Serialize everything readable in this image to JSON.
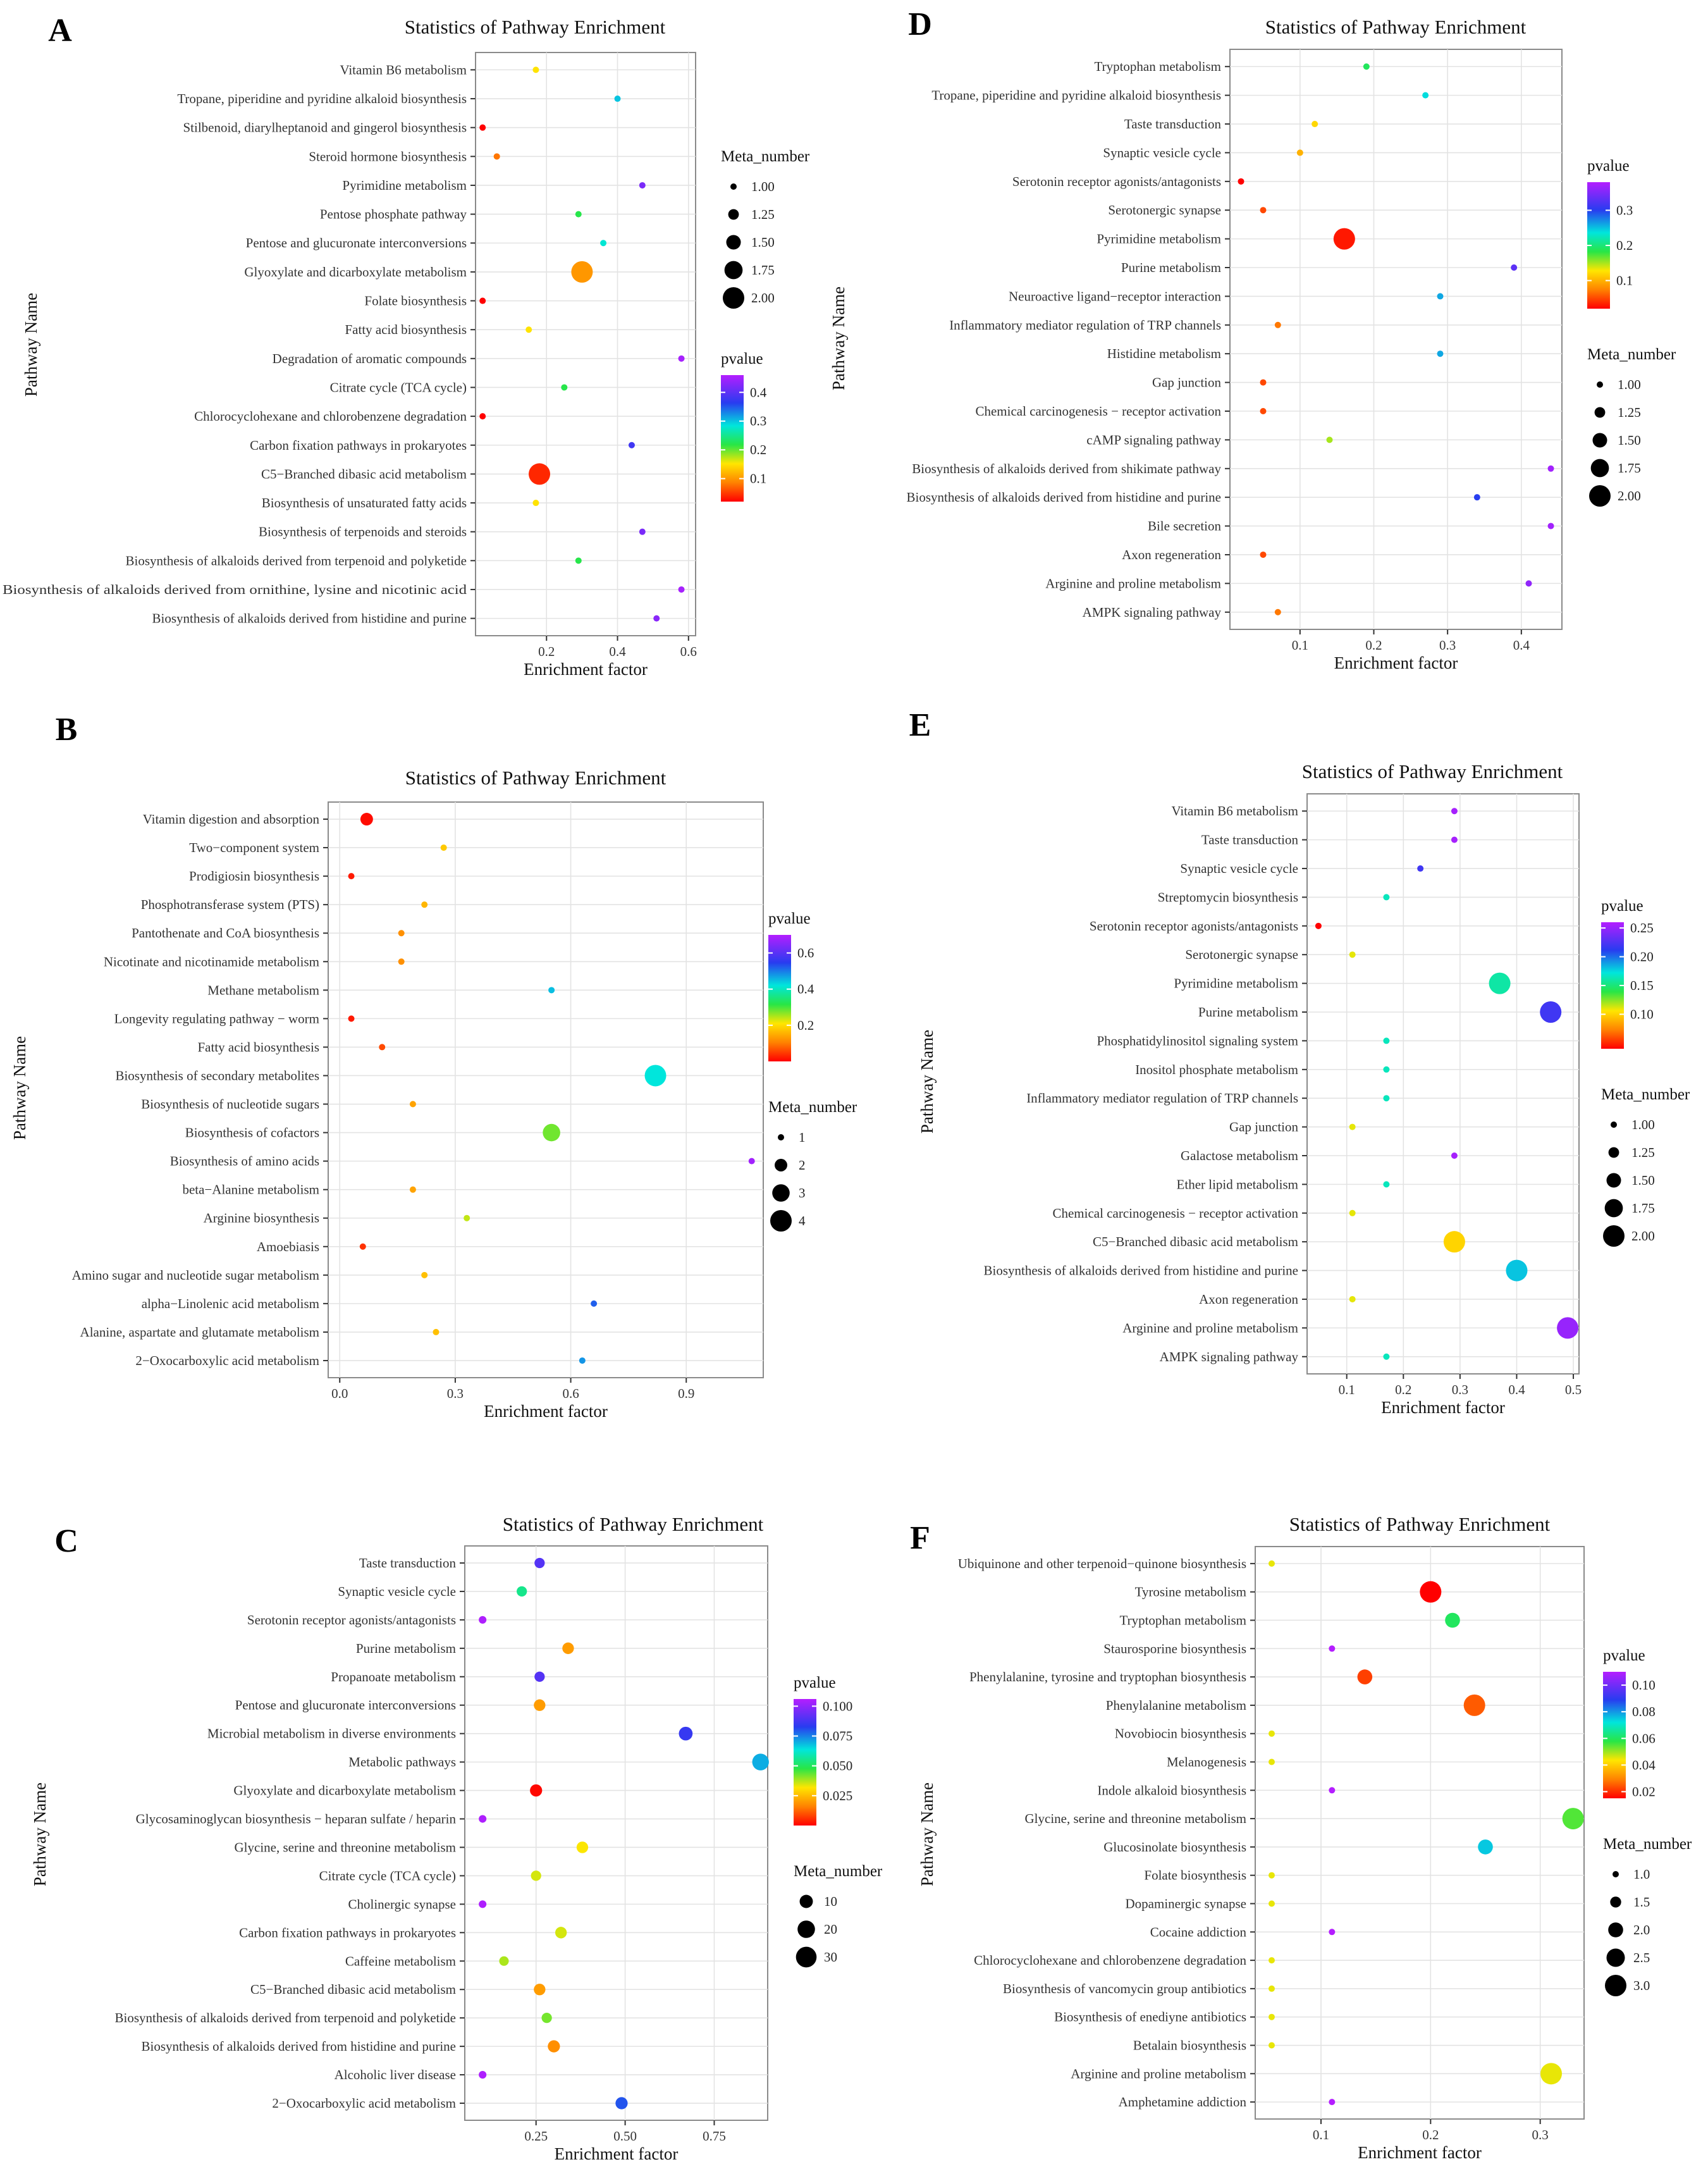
{
  "figure": {
    "panels": [
      "A",
      "B",
      "C",
      "D",
      "E",
      "F"
    ]
  },
  "chart_data": [
    {
      "panel": "A",
      "type": "scatter",
      "title": "Statistics of Pathway Enrichment",
      "xlabel": "Enrichment factor",
      "ylabel": "Pathway Name",
      "xlim": [
        0.0,
        0.62
      ],
      "xticks": [
        0.2,
        0.4,
        0.6
      ],
      "xtick_labels": [
        "0.2",
        "0.4",
        "0.6"
      ],
      "categories": [
        "Vitamin B6 metabolism",
        "Tropane, piperidine and pyridine alkaloid biosynthesis",
        "Stilbenoid, diarylheptanoid and gingerol biosynthesis",
        "Steroid hormone biosynthesis",
        "Pyrimidine metabolism",
        "Pentose phosphate pathway",
        "Pentose and glucuronate interconversions",
        "Glyoxylate and dicarboxylate metabolism",
        "Folate biosynthesis",
        "Fatty acid biosynthesis",
        "Degradation of aromatic compounds",
        "Citrate cycle (TCA cycle)",
        "Chlorocyclohexane and chlorobenzene degradation",
        "Carbon fixation pathways in prokaryotes",
        "C5−Branched dibasic acid metabolism",
        "Biosynthesis of unsaturated fatty acids",
        "Biosynthesis of terpenoids and steroids",
        "Biosynthesis of alkaloids derived from terpenoid and polyketide",
        "Biosynthesis of alkaloids derived from ornithine, lysine and nicotinic acid",
        "Biosynthesis of alkaloids derived from histidine and purine"
      ],
      "x": [
        0.17,
        0.4,
        0.02,
        0.06,
        0.47,
        0.29,
        0.36,
        0.3,
        0.02,
        0.15,
        0.58,
        0.25,
        0.02,
        0.44,
        0.18,
        0.17,
        0.47,
        0.29,
        0.58,
        0.51
      ],
      "pvalue": [
        0.15,
        0.3,
        0.02,
        0.08,
        0.42,
        0.22,
        0.28,
        0.1,
        0.02,
        0.15,
        0.45,
        0.22,
        0.02,
        0.38,
        0.04,
        0.15,
        0.42,
        0.22,
        0.45,
        0.43
      ],
      "size": [
        1,
        1,
        1,
        1,
        1,
        1,
        1,
        2,
        1,
        1,
        1,
        1,
        1,
        1,
        2,
        1,
        1,
        1,
        1,
        1
      ],
      "color_legend": {
        "title": "pvalue",
        "min": 0.02,
        "max": 0.46,
        "ticks": [
          0.1,
          0.2,
          0.3,
          0.4
        ],
        "labels": [
          "0.1",
          "0.2",
          "0.3",
          "0.4"
        ]
      },
      "size_legend": {
        "title": "Meta_number",
        "values": [
          1.0,
          1.25,
          1.5,
          1.75,
          2.0
        ],
        "labels": [
          "1.00",
          "1.25",
          "1.50",
          "1.75",
          "2.00"
        ],
        "range": [
          1,
          2
        ]
      },
      "legend_order": [
        "size",
        "color"
      ]
    },
    {
      "panel": "B",
      "type": "scatter",
      "title": "Statistics of Pathway Enrichment",
      "xlabel": "Enrichment factor",
      "ylabel": "Pathway Name",
      "xlim": [
        -0.03,
        1.1
      ],
      "xticks": [
        0.0,
        0.3,
        0.6,
        0.9
      ],
      "xtick_labels": [
        "0.0",
        "0.3",
        "0.6",
        "0.9"
      ],
      "categories": [
        "Vitamin digestion and absorption",
        "Two−component system",
        "Prodigiosin biosynthesis",
        "Phosphotransferase system (PTS)",
        "Pantothenate and CoA biosynthesis",
        "Nicotinate and nicotinamide metabolism",
        "Methane metabolism",
        "Longevity regulating pathway − worm",
        "Fatty acid biosynthesis",
        "Biosynthesis of secondary metabolites",
        "Biosynthesis of nucleotide sugars",
        "Biosynthesis of cofactors",
        "Biosynthesis of amino acids",
        "beta−Alanine metabolism",
        "Arginine biosynthesis",
        "Amoebiasis",
        "Amino sugar and nucleotide sugar metabolism",
        "alpha−Linolenic acid metabolism",
        "Alanine, aspartate and glutamate metabolism",
        "2−Oxocarboxylic acid metabolism"
      ],
      "x": [
        0.07,
        0.27,
        0.03,
        0.22,
        0.16,
        0.16,
        0.55,
        0.03,
        0.11,
        0.82,
        0.19,
        0.55,
        1.07,
        0.19,
        0.33,
        0.06,
        0.22,
        0.66,
        0.25,
        0.63
      ],
      "pvalue": [
        0.01,
        0.18,
        0.02,
        0.16,
        0.12,
        0.12,
        0.45,
        0.02,
        0.06,
        0.42,
        0.14,
        0.28,
        0.68,
        0.14,
        0.24,
        0.04,
        0.17,
        0.52,
        0.17,
        0.48
      ],
      "size": [
        2,
        1,
        1,
        1,
        1,
        1,
        1,
        1,
        1,
        4,
        1,
        3,
        1,
        1,
        1,
        1,
        1,
        1,
        1,
        1
      ],
      "color_legend": {
        "title": "pvalue",
        "min": 0.0,
        "max": 0.7,
        "ticks": [
          0.2,
          0.4,
          0.6
        ],
        "labels": [
          "0.2",
          "0.4",
          "0.6"
        ]
      },
      "size_legend": {
        "title": "Meta_number",
        "values": [
          1,
          2,
          3,
          4
        ],
        "labels": [
          "1",
          "2",
          "3",
          "4"
        ],
        "range": [
          1,
          4
        ]
      },
      "legend_order": [
        "color",
        "size"
      ]
    },
    {
      "panel": "C",
      "type": "scatter",
      "title": "Statistics of Pathway Enrichment",
      "xlabel": "Enrichment factor",
      "ylabel": "Pathway Name",
      "xlim": [
        0.05,
        0.9
      ],
      "xticks": [
        0.25,
        0.5,
        0.75
      ],
      "xtick_labels": [
        "0.25",
        "0.50",
        "0.75"
      ],
      "categories": [
        "Taste transduction",
        "Synaptic vesicle cycle",
        "Serotonin receptor agonists/antagonists",
        "Purine metabolism",
        "Propanoate metabolism",
        "Pentose and glucuronate interconversions",
        "Microbial metabolism in diverse environments",
        "Metabolic pathways",
        "Glyoxylate and dicarboxylate metabolism",
        "Glycosaminoglycan biosynthesis − heparan sulfate / heparin",
        "Glycine, serine and threonine metabolism",
        "Citrate cycle (TCA cycle)",
        "Cholinergic synapse",
        "Carbon fixation pathways in prokaryotes",
        "Caffeine metabolism",
        "C5−Branched dibasic acid metabolism",
        "Biosynthesis of alkaloids derived from terpenoid and polyketide",
        "Biosynthesis of alkaloids derived from histidine and purine",
        "Alcoholic liver disease",
        "2−Oxocarboxylic acid metabolism"
      ],
      "x": [
        0.26,
        0.21,
        0.1,
        0.34,
        0.26,
        0.26,
        0.67,
        0.88,
        0.25,
        0.1,
        0.38,
        0.25,
        0.1,
        0.32,
        0.16,
        0.26,
        0.28,
        0.3,
        0.1,
        0.49
      ],
      "pvalue": [
        0.09,
        0.055,
        0.105,
        0.02,
        0.09,
        0.02,
        0.085,
        0.07,
        0.001,
        0.105,
        0.032,
        0.035,
        0.105,
        0.035,
        0.038,
        0.02,
        0.042,
        0.018,
        0.105,
        0.08
      ],
      "size": [
        5,
        5,
        2,
        7,
        5,
        7,
        11,
        18,
        8,
        2,
        7,
        5,
        2,
        7,
        4,
        7,
        5,
        8,
        2,
        8
      ],
      "color_legend": {
        "title": "pvalue",
        "min": 0.0,
        "max": 0.106,
        "ticks": [
          0.025,
          0.05,
          0.075,
          0.1
        ],
        "labels": [
          "0.025",
          "0.050",
          "0.075",
          "0.100"
        ]
      },
      "size_legend": {
        "title": "Meta_number",
        "values": [
          10,
          20,
          30
        ],
        "labels": [
          "10",
          "20",
          "30"
        ],
        "range": [
          1,
          33
        ]
      },
      "legend_order": [
        "color",
        "size"
      ]
    },
    {
      "panel": "D",
      "type": "scatter",
      "title": "Statistics of Pathway Enrichment",
      "xlabel": "Enrichment factor",
      "ylabel": "Pathway Name",
      "xlim": [
        0.005,
        0.455
      ],
      "xticks": [
        0.1,
        0.2,
        0.3,
        0.4
      ],
      "xtick_labels": [
        "0.1",
        "0.2",
        "0.3",
        "0.4"
      ],
      "categories": [
        "Tryptophan metabolism",
        "Tropane, piperidine and pyridine alkaloid biosynthesis",
        "Taste transduction",
        "Synaptic vesicle cycle",
        "Serotonin receptor agonists/antagonists",
        "Serotonergic synapse",
        "Pyrimidine metabolism",
        "Purine metabolism",
        "Neuroactive ligand−receptor interaction",
        "Inflammatory mediator regulation of TRP channels",
        "Histidine metabolism",
        "Gap junction",
        "Chemical carcinogenesis − receptor activation",
        "cAMP signaling pathway",
        "Biosynthesis of alkaloids derived from shikimate pathway",
        "Biosynthesis of alkaloids derived from histidine and purine",
        "Bile secretion",
        "Axon regeneration",
        "Arginine and proline metabolism",
        "AMPK signaling pathway"
      ],
      "x": [
        0.19,
        0.27,
        0.12,
        0.1,
        0.02,
        0.05,
        0.16,
        0.39,
        0.29,
        0.07,
        0.29,
        0.05,
        0.05,
        0.14,
        0.44,
        0.34,
        0.44,
        0.05,
        0.41,
        0.07
      ],
      "pvalue": [
        0.19,
        0.24,
        0.12,
        0.1,
        0.02,
        0.05,
        0.03,
        0.33,
        0.26,
        0.07,
        0.26,
        0.05,
        0.05,
        0.15,
        0.37,
        0.3,
        0.37,
        0.05,
        0.36,
        0.07
      ],
      "size": [
        1,
        1,
        1,
        1,
        1,
        1,
        2,
        1,
        1,
        1,
        1,
        1,
        1,
        1,
        1,
        1,
        1,
        1,
        1,
        1
      ],
      "color_legend": {
        "title": "pvalue",
        "min": 0.02,
        "max": 0.38,
        "ticks": [
          0.1,
          0.2,
          0.3
        ],
        "labels": [
          "0.1",
          "0.2",
          "0.3"
        ]
      },
      "size_legend": {
        "title": "Meta_number",
        "values": [
          1.0,
          1.25,
          1.5,
          1.75,
          2.0
        ],
        "labels": [
          "1.00",
          "1.25",
          "1.50",
          "1.75",
          "2.00"
        ],
        "range": [
          1,
          2
        ]
      },
      "legend_order": [
        "color",
        "size"
      ]
    },
    {
      "panel": "E",
      "type": "scatter",
      "title": "Statistics of Pathway Enrichment",
      "xlabel": "Enrichment factor",
      "ylabel": "Pathway Name",
      "xlim": [
        0.03,
        0.51
      ],
      "xticks": [
        0.1,
        0.2,
        0.3,
        0.4,
        0.5
      ],
      "xtick_labels": [
        "0.1",
        "0.2",
        "0.3",
        "0.4",
        "0.5"
      ],
      "categories": [
        "Vitamin B6 metabolism",
        "Taste transduction",
        "Synaptic vesicle cycle",
        "Streptomycin biosynthesis",
        "Serotonin receptor agonists/antagonists",
        "Serotonergic synapse",
        "Pyrimidine metabolism",
        "Purine metabolism",
        "Phosphatidylinositol signaling system",
        "Inositol phosphate metabolism",
        "Inflammatory mediator regulation of TRP channels",
        "Gap junction",
        "Galactose metabolism",
        "Ether lipid metabolism",
        "Chemical carcinogenesis − receptor activation",
        "C5−Branched dibasic acid metabolism",
        "Biosynthesis of alkaloids derived from histidine and purine",
        "Axon regeneration",
        "Arginine and proline metabolism",
        "AMPK signaling pathway"
      ],
      "x": [
        0.29,
        0.29,
        0.23,
        0.17,
        0.05,
        0.11,
        0.37,
        0.46,
        0.17,
        0.17,
        0.17,
        0.11,
        0.29,
        0.17,
        0.11,
        0.29,
        0.4,
        0.11,
        0.49,
        0.17
      ],
      "pvalue": [
        0.255,
        0.255,
        0.22,
        0.165,
        0.04,
        0.11,
        0.16,
        0.22,
        0.165,
        0.165,
        0.165,
        0.11,
        0.255,
        0.165,
        0.11,
        0.1,
        0.18,
        0.11,
        0.25,
        0.165
      ],
      "size": [
        1,
        1,
        1,
        1,
        1,
        1,
        2,
        2,
        1,
        1,
        1,
        1,
        1,
        1,
        1,
        2,
        2,
        1,
        2,
        1
      ],
      "color_legend": {
        "title": "pvalue",
        "min": 0.04,
        "max": 0.26,
        "ticks": [
          0.1,
          0.15,
          0.2,
          0.25
        ],
        "labels": [
          "0.10",
          "0.15",
          "0.20",
          "0.25"
        ]
      },
      "size_legend": {
        "title": "Meta_number",
        "values": [
          1.0,
          1.25,
          1.5,
          1.75,
          2.0
        ],
        "labels": [
          "1.00",
          "1.25",
          "1.50",
          "1.75",
          "2.00"
        ],
        "range": [
          1,
          2
        ]
      },
      "legend_order": [
        "color",
        "size"
      ]
    },
    {
      "panel": "F",
      "type": "scatter",
      "title": "Statistics of Pathway Enrichment",
      "xlabel": "Enrichment factor",
      "ylabel": "Pathway Name",
      "xlim": [
        0.04,
        0.34
      ],
      "xticks": [
        0.1,
        0.2,
        0.3
      ],
      "xtick_labels": [
        "0.1",
        "0.2",
        "0.3"
      ],
      "categories": [
        "Ubiquinone and other terpenoid−quinone biosynthesis",
        "Tyrosine metabolism",
        "Tryptophan metabolism",
        "Staurosporine biosynthesis",
        "Phenylalanine, tyrosine and tryptophan biosynthesis",
        "Phenylalanine metabolism",
        "Novobiocin biosynthesis",
        "Melanogenesis",
        "Indole alkaloid biosynthesis",
        "Glycine, serine and threonine metabolism",
        "Glucosinolate biosynthesis",
        "Folate biosynthesis",
        "Dopaminergic synapse",
        "Cocaine addiction",
        "Chlorocyclohexane and chlorobenzene degradation",
        "Biosynthesis of vancomycin group antibiotics",
        "Biosynthesis of enediyne antibiotics",
        "Betalain biosynthesis",
        "Arginine and proline metabolism",
        "Amphetamine addiction"
      ],
      "x": [
        0.055,
        0.2,
        0.22,
        0.11,
        0.14,
        0.24,
        0.055,
        0.055,
        0.11,
        0.33,
        0.25,
        0.055,
        0.055,
        0.11,
        0.055,
        0.055,
        0.055,
        0.055,
        0.31,
        0.11
      ],
      "pvalue": [
        0.045,
        0.015,
        0.06,
        0.11,
        0.022,
        0.025,
        0.045,
        0.045,
        0.11,
        0.055,
        0.075,
        0.045,
        0.045,
        0.11,
        0.045,
        0.045,
        0.045,
        0.045,
        0.045,
        0.11
      ],
      "size": [
        1,
        3,
        2,
        1,
        2,
        3,
        1,
        1,
        1,
        3,
        2,
        1,
        1,
        1,
        1,
        1,
        1,
        1,
        3,
        1
      ],
      "color_legend": {
        "title": "pvalue",
        "min": 0.015,
        "max": 0.11,
        "ticks": [
          0.02,
          0.04,
          0.06,
          0.08,
          0.1
        ],
        "labels": [
          "0.02",
          "0.04",
          "0.06",
          "0.08",
          "0.10"
        ]
      },
      "size_legend": {
        "title": "Meta_number",
        "values": [
          1.0,
          1.5,
          2.0,
          2.5,
          3.0
        ],
        "labels": [
          "1.0",
          "1.5",
          "2.0",
          "2.5",
          "3.0"
        ],
        "range": [
          1,
          3
        ]
      },
      "legend_order": [
        "color",
        "size"
      ]
    }
  ]
}
